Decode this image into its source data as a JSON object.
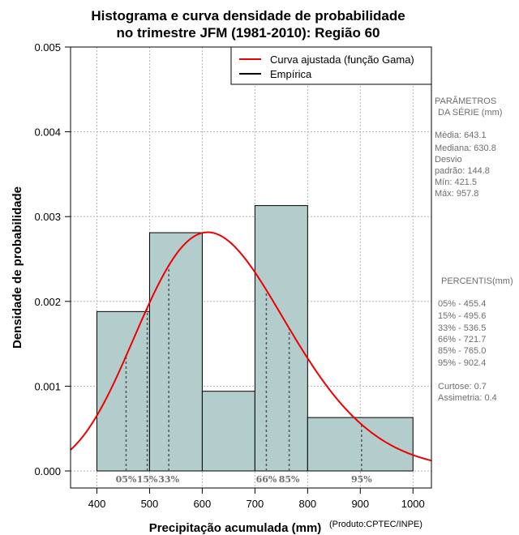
{
  "chart_data": {
    "type": "bar",
    "title_line1": "Histograma e curva densidade de probabilidade",
    "title_line2": "no trimestre JFM (1981-2010): Região 60",
    "xlabel": "Precipitação acumulada (mm)",
    "ylabel": "Densidade de probabilidade",
    "credit": "(Produto:CPTEC/INPE)",
    "xlim": [
      350,
      1035
    ],
    "ylim": [
      0,
      0.005
    ],
    "x_ticks": [
      400,
      500,
      600,
      700,
      800,
      900,
      1000
    ],
    "y_ticks": [
      0.0,
      0.001,
      0.002,
      0.003,
      0.004,
      0.005
    ],
    "y_tick_labels": [
      "0.000",
      "0.001",
      "0.002",
      "0.003",
      "0.004",
      "0.005"
    ],
    "bins": [
      {
        "from": 400,
        "to": 500,
        "density": 0.00188
      },
      {
        "from": 500,
        "to": 600,
        "density": 0.00281
      },
      {
        "from": 600,
        "to": 700,
        "density": 0.00094
      },
      {
        "from": 700,
        "to": 800,
        "density": 0.00313
      },
      {
        "from": 800,
        "to": 1000,
        "density": 0.00063
      }
    ],
    "gamma_fit": {
      "mean": 643.1,
      "sd": 144.8
    },
    "percentiles": [
      {
        "label": "05%",
        "value": 455.4
      },
      {
        "label": "15%",
        "value": 495.6
      },
      {
        "label": "33%",
        "value": 536.5
      },
      {
        "label": "66%",
        "value": 721.7
      },
      {
        "label": "85%",
        "value": 765.0
      },
      {
        "label": "95%",
        "value": 902.4
      }
    ],
    "legend": [
      {
        "label": "Curva ajustada (função Gama)",
        "color": "#ee0000"
      },
      {
        "label": "Empírica",
        "color": "#000000"
      }
    ],
    "colors": {
      "bar_fill": "#b3cccc",
      "curve": "#ee0000",
      "grid": "#b4b4b4",
      "side_text": "#6e6e6e"
    }
  },
  "series_params": {
    "header_1": "PARÂMETROS",
    "header_2": "DA SÉRIE (mm)",
    "media": "Média:  643.1",
    "mediana": "Mediana:  630.8",
    "desvio_1": "Desvio",
    "desvio_2": "padrão:  144.8",
    "min": "Mín:  421.5",
    "max": "Máx:  957.8"
  },
  "percentis_panel": {
    "header": "PERCENTIS(mm)",
    "rows": [
      "05% -  455.4",
      "15% -  495.6",
      "33% -  536.5",
      "66% -  721.7",
      "85% -  765.0",
      "95% -  902.4"
    ],
    "curtose": "Curtose:  0.7",
    "assimetria": "Assimetria:  0.4"
  }
}
